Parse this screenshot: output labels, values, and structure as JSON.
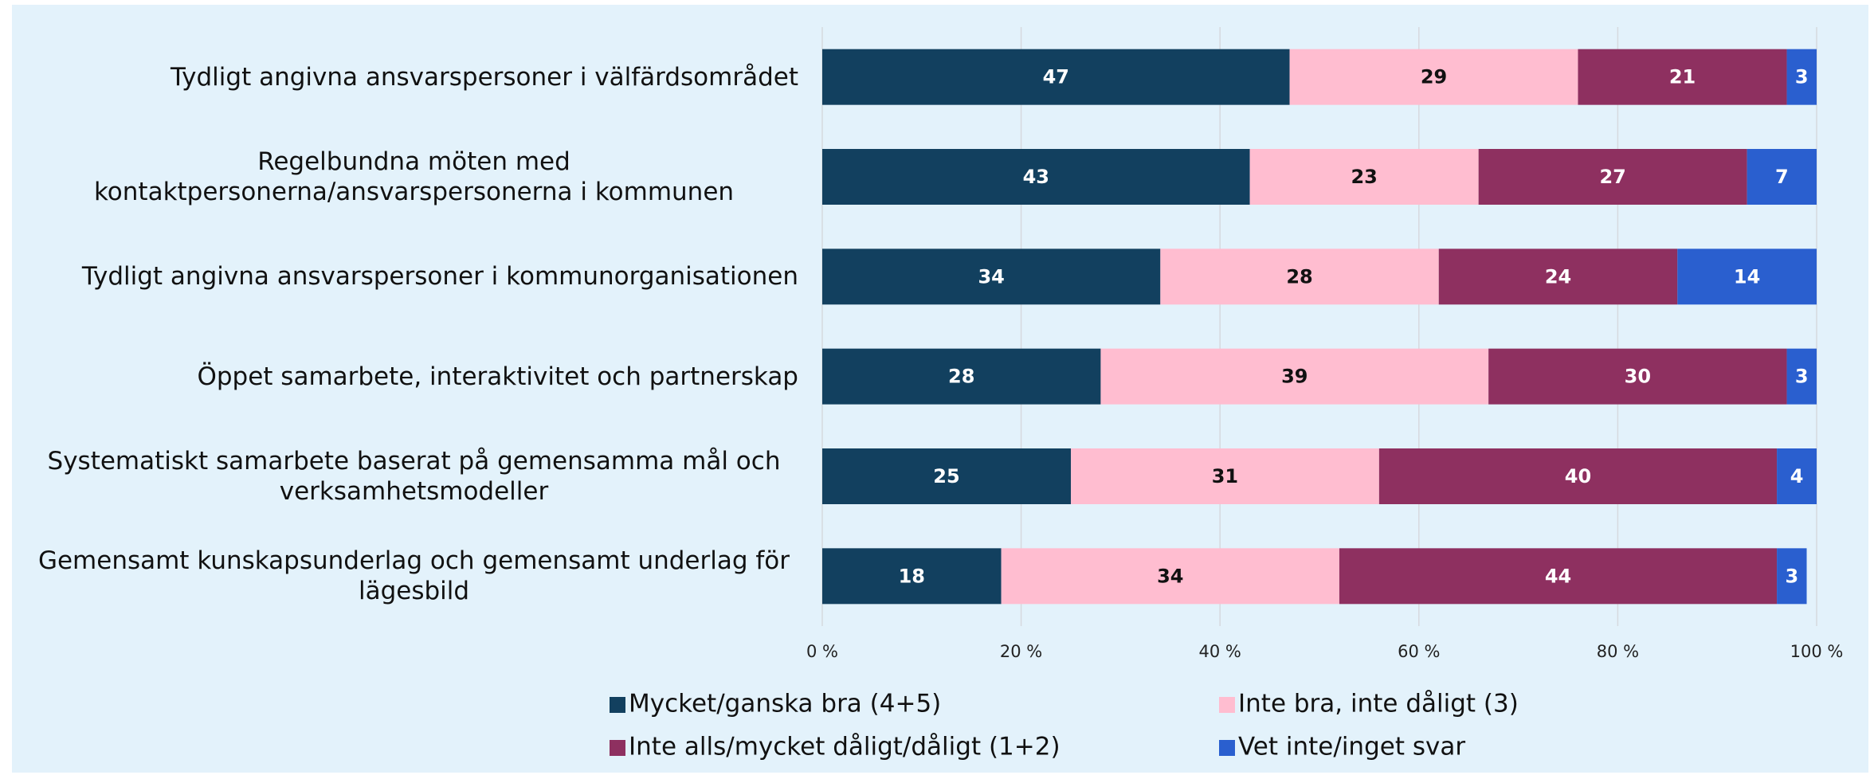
{
  "chart_data": {
    "type": "stacked-bar-horizontal",
    "categories": [
      "Tydligt angivna ansvarspersoner i välfärdsområdet",
      "Regelbundna möten med kontaktpersonerna/ansvarspersonerna i kommunen",
      "Tydligt angivna ansvarspersoner i kommunorganisationen",
      "Öppet samarbete, interaktivitet och partnerskap",
      "Systematiskt samarbete baserat på gemensamma mål och verksamhetsmodeller",
      "Gemensamt kunskapsunderlag och gemensamt underlag för lägesbild"
    ],
    "series": [
      {
        "name": "Mycket/ganska bra (4+5)",
        "color": "#12405f",
        "values": [
          47,
          43,
          34,
          28,
          25,
          18
        ]
      },
      {
        "name": "Inte bra, inte dåligt (3)",
        "color": "#ffbdd0",
        "values": [
          29,
          23,
          28,
          39,
          31,
          34
        ]
      },
      {
        "name": "Inte alls/mycket dåligt/dåligt (1+2)",
        "color": "#8e3060",
        "values": [
          21,
          27,
          24,
          30,
          40,
          44
        ]
      },
      {
        "name": "Vet inte/inget svar",
        "color": "#2a5fcf",
        "values": [
          3,
          7,
          14,
          3,
          4,
          3
        ]
      }
    ],
    "xlim": [
      0,
      100
    ],
    "xticks": [
      {
        "value": 0,
        "label": "0 %"
      },
      {
        "value": 20,
        "label": "20 %"
      },
      {
        "value": 40,
        "label": "40 %"
      },
      {
        "value": 60,
        "label": "60 %"
      },
      {
        "value": 80,
        "label": "80 %"
      },
      {
        "value": 100,
        "label": "100 %"
      }
    ],
    "grid": true,
    "legend": "bottom"
  }
}
